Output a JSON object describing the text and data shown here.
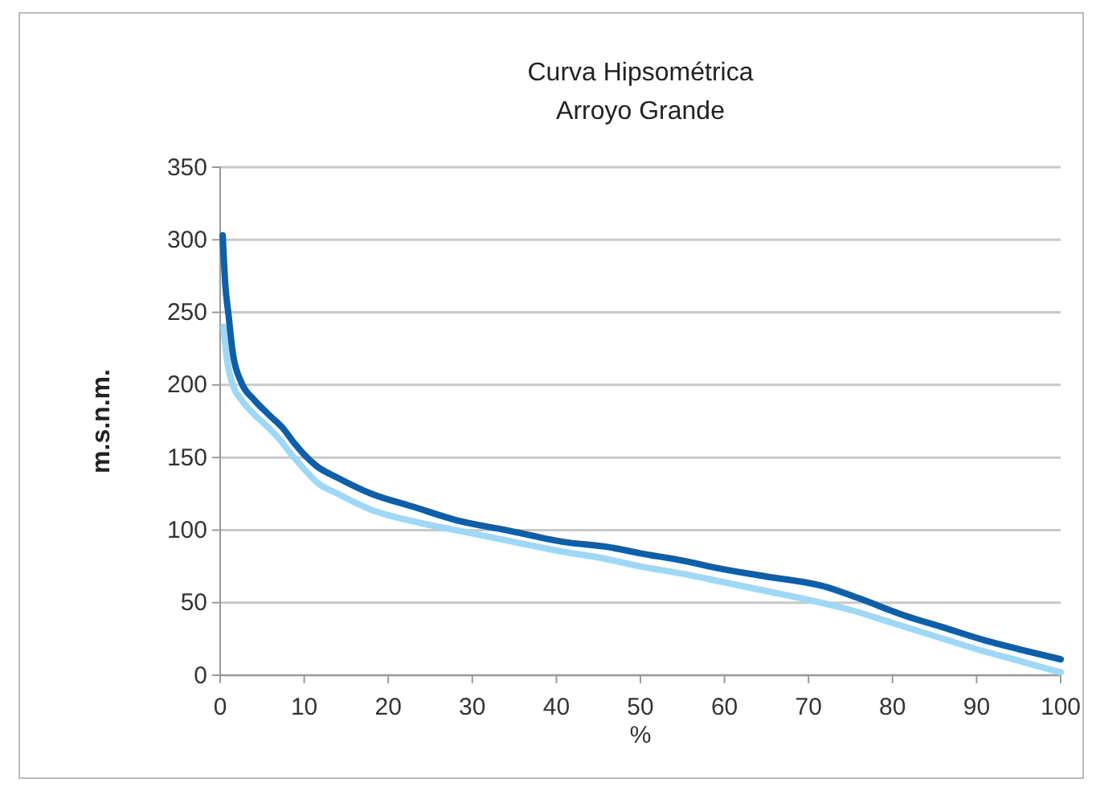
{
  "chart_data": {
    "type": "line",
    "title": "Curva Hipsométrica\nArroyo Grande",
    "xlabel": "%",
    "ylabel": "m.s.n.m.",
    "xlim": [
      0,
      100
    ],
    "xticks": [
      0,
      10,
      20,
      30,
      40,
      50,
      60,
      70,
      80,
      90,
      100
    ],
    "ylim": [
      0,
      350
    ],
    "yticks": [
      0,
      50,
      100,
      150,
      200,
      250,
      300,
      350
    ],
    "grid": "y",
    "marker": "none",
    "line_style": "solid",
    "series": [
      {
        "color": "#9fd8f5",
        "x": [
          0.4,
          0.8,
          1.5,
          2.5,
          4,
          5.5,
          7,
          8.5,
          10,
          11.5,
          14,
          18,
          23,
          28,
          34,
          40,
          46,
          50,
          55,
          60,
          65,
          70,
          75,
          80,
          85,
          90,
          95,
          100
        ],
        "values": [
          240,
          218,
          200,
          190,
          180,
          172,
          163,
          152,
          142,
          133,
          125,
          114,
          106,
          100,
          93,
          86,
          80,
          75,
          70,
          64,
          58,
          52,
          45,
          36,
          27,
          18,
          10,
          2
        ]
      },
      {
        "color": "#0e5fa8",
        "x": [
          0.3,
          0.6,
          1,
          1.5,
          2.5,
          4,
          5.7,
          7.5,
          8.8,
          10,
          11.5,
          14,
          18,
          23,
          28,
          34,
          40.7,
          46.5,
          50,
          55,
          59,
          65,
          72,
          76,
          81.5,
          86,
          91,
          95,
          100
        ],
        "values": [
          303,
          270,
          248,
          222,
          202,
          190,
          180,
          170,
          160,
          152,
          144,
          136,
          125,
          116,
          107,
          100,
          92,
          88,
          84,
          79,
          74,
          68,
          61,
          53,
          41,
          33,
          24,
          18,
          11
        ]
      }
    ]
  }
}
